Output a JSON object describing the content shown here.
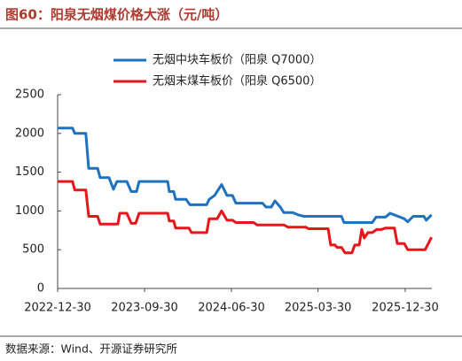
{
  "chart_data": {
    "type": "line",
    "title": "图60：阳泉无烟煤价格大涨（元/吨）",
    "source": "数据来源：Wind、开源证券研究所",
    "legend": "top",
    "xlim": [
      "2022-12-30",
      "2026-03-24"
    ],
    "xticks": [
      "2022-12-30",
      "2023-09-30",
      "2024-06-30",
      "2025-03-30",
      "2025-12-30"
    ],
    "ylim": [
      0,
      2500
    ],
    "yticks": [
      0,
      500,
      1000,
      1500,
      2000,
      2500
    ],
    "series": [
      {
        "name": "无烟中块车板价（阳泉 Q7000）",
        "color": "#1f72bf",
        "x": [
          "2022-12-30",
          "2023-02-15",
          "2023-02-22",
          "2023-03-29",
          "2023-04-07",
          "2023-05-05",
          "2023-05-13",
          "2023-06-10",
          "2023-06-24",
          "2023-07-05",
          "2023-08-05",
          "2023-08-19",
          "2023-09-05",
          "2023-09-13",
          "2023-12-12",
          "2023-12-17",
          "2023-12-31",
          "2024-01-06",
          "2024-02-08",
          "2024-02-20",
          "2024-04-13",
          "2024-04-21",
          "2024-05-08",
          "2024-05-30",
          "2024-06-16",
          "2024-07-03",
          "2024-07-14",
          "2024-10-06",
          "2024-10-17",
          "2024-11-03",
          "2024-11-14",
          "2024-12-01",
          "2024-12-12",
          "2025-01-09",
          "2025-01-26",
          "2025-02-14",
          "2025-06-12",
          "2025-06-20",
          "2025-09-17",
          "2025-09-29",
          "2025-10-29",
          "2025-11-12",
          "2025-12-27",
          "2026-01-07",
          "2026-01-24",
          "2026-02-27",
          "2026-03-06",
          "2026-03-23"
        ],
        "values": [
          2070,
          2070,
          2000,
          2000,
          1550,
          1550,
          1430,
          1430,
          1280,
          1380,
          1380,
          1250,
          1250,
          1380,
          1380,
          1250,
          1250,
          1150,
          1150,
          1080,
          1080,
          1150,
          1200,
          1340,
          1200,
          1200,
          1100,
          1100,
          1050,
          1050,
          1130,
          1050,
          980,
          980,
          950,
          930,
          930,
          850,
          850,
          920,
          920,
          970,
          900,
          860,
          930,
          930,
          880,
          950
        ]
      },
      {
        "name": "无烟末煤车板价（阳泉 Q6500）",
        "color": "#e8151b",
        "x": [
          "2022-12-30",
          "2023-02-15",
          "2023-02-22",
          "2023-03-29",
          "2023-04-07",
          "2023-05-05",
          "2023-05-13",
          "2023-07-08",
          "2023-07-14",
          "2023-08-05",
          "2023-08-19",
          "2023-09-02",
          "2023-09-13",
          "2023-12-12",
          "2023-12-17",
          "2023-12-31",
          "2024-01-06",
          "2024-02-17",
          "2024-02-25",
          "2024-04-13",
          "2024-04-21",
          "2024-05-16",
          "2024-05-30",
          "2024-06-16",
          "2024-07-03",
          "2024-07-14",
          "2024-09-08",
          "2024-09-19",
          "2024-12-12",
          "2024-12-26",
          "2025-02-20",
          "2025-02-28",
          "2025-05-01",
          "2025-05-09",
          "2025-05-23",
          "2025-05-29",
          "2025-06-12",
          "2025-06-23",
          "2025-07-15",
          "2025-07-24",
          "2025-08-07",
          "2025-08-15",
          "2025-08-23",
          "2025-09-03",
          "2025-09-17",
          "2025-10-01",
          "2025-10-15",
          "2025-10-29",
          "2025-11-26",
          "2025-12-05",
          "2025-12-27",
          "2026-01-07",
          "2026-03-03",
          "2026-03-23"
        ],
        "values": [
          1380,
          1380,
          1270,
          1270,
          930,
          930,
          830,
          830,
          970,
          970,
          840,
          840,
          970,
          970,
          870,
          870,
          780,
          780,
          720,
          720,
          900,
          900,
          1000,
          880,
          880,
          850,
          850,
          820,
          820,
          790,
          790,
          770,
          770,
          560,
          560,
          530,
          530,
          460,
          460,
          560,
          560,
          760,
          650,
          720,
          720,
          760,
          760,
          780,
          780,
          580,
          580,
          500,
          500,
          660
        ]
      }
    ]
  }
}
